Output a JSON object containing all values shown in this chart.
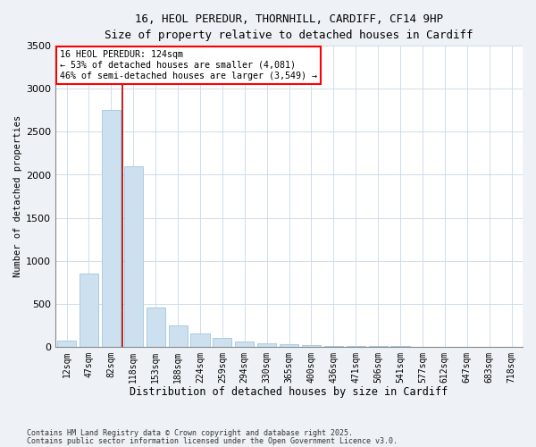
{
  "title_line1": "16, HEOL PEREDUR, THORNHILL, CARDIFF, CF14 9HP",
  "title_line2": "Size of property relative to detached houses in Cardiff",
  "xlabel": "Distribution of detached houses by size in Cardiff",
  "ylabel": "Number of detached properties",
  "bar_labels": [
    "12sqm",
    "47sqm",
    "82sqm",
    "118sqm",
    "153sqm",
    "188sqm",
    "224sqm",
    "259sqm",
    "294sqm",
    "330sqm",
    "365sqm",
    "400sqm",
    "436sqm",
    "471sqm",
    "506sqm",
    "541sqm",
    "577sqm",
    "612sqm",
    "647sqm",
    "683sqm",
    "718sqm"
  ],
  "bar_values": [
    75,
    850,
    2750,
    2100,
    450,
    250,
    150,
    100,
    55,
    40,
    30,
    22,
    12,
    8,
    5,
    3,
    2,
    1,
    0.5,
    0.3,
    0.2
  ],
  "bar_color": "#cce0f0",
  "bar_edgecolor": "#aacce0",
  "vline_color": "#aa0000",
  "vline_x": 2.5,
  "ylim": [
    0,
    3500
  ],
  "yticks": [
    0,
    500,
    1000,
    1500,
    2000,
    2500,
    3000,
    3500
  ],
  "annotation_title": "16 HEOL PEREDUR: 124sqm",
  "annotation_line2": "← 53% of detached houses are smaller (4,081)",
  "annotation_line3": "46% of semi-detached houses are larger (3,549) →",
  "footnote1": "Contains HM Land Registry data © Crown copyright and database right 2025.",
  "footnote2": "Contains public sector information licensed under the Open Government Licence v3.0.",
  "background_color": "#eef2f6",
  "plot_bg_color": "#ffffff",
  "grid_color": "#c8d8e8"
}
